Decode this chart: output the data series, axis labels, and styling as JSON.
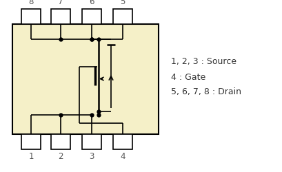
{
  "bg_color": "#ffffff",
  "chip_color": "#f5f0c8",
  "pin_labels_top": [
    "8",
    "7",
    "6",
    "5"
  ],
  "pin_labels_bot": [
    "1",
    "2",
    "3",
    "4"
  ],
  "legend_text": [
    "1, 2, 3 : Source",
    "4 : Gate",
    "5, 6, 7, 8 : Drain"
  ],
  "label_color": "#555555",
  "line_color": "#000000",
  "chip_lw": 1.5,
  "pin_lw": 1.2,
  "wire_lw": 1.2
}
